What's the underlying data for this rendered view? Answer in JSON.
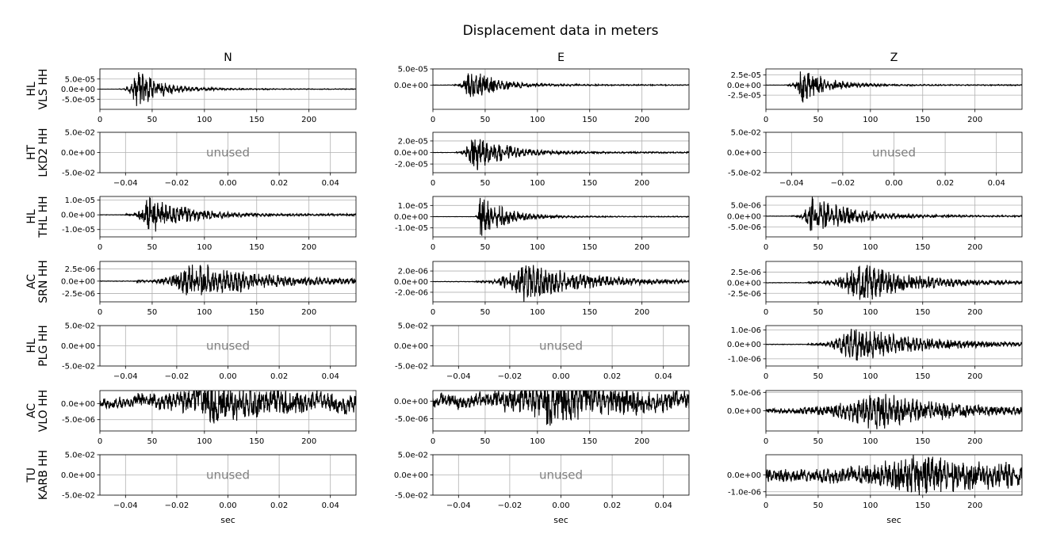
{
  "chart_data": {
    "type": "line",
    "title": "Displacement data in meters",
    "columns": [
      "N",
      "E",
      "Z"
    ],
    "rows": [
      {
        "label_line1": "HL",
        "label_line2": "VLS HH"
      },
      {
        "label_line1": "HT",
        "label_line2": "LKD2 HH"
      },
      {
        "label_line1": "HL",
        "label_line2": "THL HH"
      },
      {
        "label_line1": "AC",
        "label_line2": "SRN HH"
      },
      {
        "label_line1": "HL",
        "label_line2": "PLG HH"
      },
      {
        "label_line1": "AC",
        "label_line2": "VLO HH"
      },
      {
        "label_line1": "TU",
        "label_line2": "KARB HH"
      }
    ],
    "xlabel": "sec",
    "unused_text": "unused",
    "unused_xticks": [
      {
        "value": -0.04,
        "label": "−0.04"
      },
      {
        "value": -0.02,
        "label": "−0.02"
      },
      {
        "value": 0.0,
        "label": "0.00"
      },
      {
        "value": 0.02,
        "label": "0.02"
      },
      {
        "value": 0.04,
        "label": "0.04"
      }
    ],
    "unused_xlim": [
      -0.05,
      0.05
    ],
    "unused_ylim": [
      -0.05,
      0.05
    ],
    "unused_yticks": [
      {
        "value": 0.05,
        "label": "5.0e-02"
      },
      {
        "value": 0.0,
        "label": "0.0e+00"
      },
      {
        "value": -0.05,
        "label": "-5.0e-02"
      }
    ],
    "time_xlim": [
      0,
      245
    ],
    "time_xticks": [
      {
        "value": 0,
        "label": "0"
      },
      {
        "value": 50,
        "label": "50"
      },
      {
        "value": 100,
        "label": "100"
      },
      {
        "value": 150,
        "label": "150"
      },
      {
        "value": 200,
        "label": "200"
      }
    ],
    "panels": [
      {
        "row": 0,
        "col": 0,
        "used": true,
        "ylim": [
          -0.0001,
          0.0001
        ],
        "yticks": [
          {
            "value": 5e-05,
            "label": "5.0e-05"
          },
          {
            "value": 0,
            "label": "0.0e+00"
          },
          {
            "value": -5e-05,
            "label": "-5.0e-05"
          }
        ],
        "onset": 18,
        "peak_time": 35,
        "peak_amp": 8.8e-05,
        "coda": 25,
        "noise": 0.02,
        "wobble": 0,
        "seed": 1
      },
      {
        "row": 0,
        "col": 1,
        "used": true,
        "ylim": [
          -7.5e-05,
          5e-05
        ],
        "yticks": [
          {
            "value": 5e-05,
            "label": "5.0e-05"
          },
          {
            "value": 0,
            "label": "0.0e+00"
          }
        ],
        "onset": 18,
        "peak_time": 35,
        "peak_amp": 5e-05,
        "coda": 25,
        "noise": 0.03,
        "wobble": 0,
        "seed": 2
      },
      {
        "row": 0,
        "col": 2,
        "used": true,
        "ylim": [
          -6e-05,
          4e-05
        ],
        "yticks": [
          {
            "value": 2.5e-05,
            "label": "2.5e-05"
          },
          {
            "value": 0,
            "label": "0.0e+00"
          },
          {
            "value": -2.5e-05,
            "label": "-2.5e-05"
          }
        ],
        "onset": 18,
        "peak_time": 34,
        "peak_amp": 4e-05,
        "coda": 25,
        "noise": 0.03,
        "wobble": 0,
        "seed": 3
      },
      {
        "row": 1,
        "col": 0,
        "used": false
      },
      {
        "row": 1,
        "col": 1,
        "used": true,
        "ylim": [
          -3.5e-05,
          3.5e-05
        ],
        "yticks": [
          {
            "value": 2e-05,
            "label": "2.0e-05"
          },
          {
            "value": 0,
            "label": "0.0e+00"
          },
          {
            "value": -2e-05,
            "label": "-2.0e-05"
          }
        ],
        "onset": 20,
        "peak_time": 38,
        "peak_amp": 3.2e-05,
        "coda": 30,
        "noise": 0.03,
        "wobble": 0,
        "seed": 4
      },
      {
        "row": 1,
        "col": 2,
        "used": false
      },
      {
        "row": 2,
        "col": 0,
        "used": true,
        "ylim": [
          -1.5e-05,
          1.25e-05
        ],
        "yticks": [
          {
            "value": 1e-05,
            "label": "1.0e-05"
          },
          {
            "value": 0,
            "label": "0.0e+00"
          },
          {
            "value": -1e-05,
            "label": "-1.0e-05"
          }
        ],
        "onset": 24,
        "peak_time": 47,
        "peak_amp": 1.25e-05,
        "coda": 35,
        "noise": 0.04,
        "wobble": 0,
        "seed": 5
      },
      {
        "row": 2,
        "col": 1,
        "used": true,
        "ylim": [
          -1.8e-05,
          1.8e-05
        ],
        "yticks": [
          {
            "value": 1e-05,
            "label": "1.0e-05"
          },
          {
            "value": 0,
            "label": "0.0e+00"
          },
          {
            "value": -1e-05,
            "label": "-1.0e-05"
          }
        ],
        "onset": 40,
        "peak_time": 45,
        "peak_amp": 1.8e-05,
        "coda": 25,
        "noise": 0.02,
        "wobble": 0,
        "seed": 6
      },
      {
        "row": 2,
        "col": 2,
        "used": true,
        "ylim": [
          -9.5e-06,
          9e-06
        ],
        "yticks": [
          {
            "value": 5e-06,
            "label": "5.0e-06"
          },
          {
            "value": 0,
            "label": "0.0e+00"
          },
          {
            "value": -5e-06,
            "label": "-5.0e-06"
          }
        ],
        "onset": 24,
        "peak_time": 45,
        "peak_amp": 9e-06,
        "coda": 35,
        "noise": 0.03,
        "wobble": 0,
        "seed": 7
      },
      {
        "row": 3,
        "col": 0,
        "used": true,
        "ylim": [
          -4.2e-06,
          4e-06
        ],
        "yticks": [
          {
            "value": 2.5e-06,
            "label": "2.5e-06"
          },
          {
            "value": 0,
            "label": "0.0e+00"
          },
          {
            "value": -2.5e-06,
            "label": "-2.5e-06"
          }
        ],
        "onset": 35,
        "peak_time": 90,
        "peak_amp": 3.8e-06,
        "coda": 60,
        "noise": 0.06,
        "wobble": 0,
        "seed": 8
      },
      {
        "row": 3,
        "col": 1,
        "used": true,
        "ylim": [
          -3.8e-06,
          3.8e-06
        ],
        "yticks": [
          {
            "value": 2e-06,
            "label": "2.0e-06"
          },
          {
            "value": 0,
            "label": "0.0e+00"
          },
          {
            "value": -2e-06,
            "label": "-2.0e-06"
          }
        ],
        "onset": 40,
        "peak_time": 85,
        "peak_amp": 3.6e-06,
        "coda": 55,
        "noise": 0.05,
        "wobble": 0,
        "seed": 9
      },
      {
        "row": 3,
        "col": 2,
        "used": true,
        "ylim": [
          -4.5e-06,
          5e-06
        ],
        "yticks": [
          {
            "value": 2.5e-06,
            "label": "2.5e-06"
          },
          {
            "value": 0,
            "label": "0.0e+00"
          },
          {
            "value": -2.5e-06,
            "label": "-2.5e-06"
          }
        ],
        "onset": 40,
        "peak_time": 88,
        "peak_amp": 4.5e-06,
        "coda": 50,
        "noise": 0.05,
        "wobble": 0,
        "seed": 10
      },
      {
        "row": 4,
        "col": 0,
        "used": false
      },
      {
        "row": 4,
        "col": 1,
        "used": false
      },
      {
        "row": 4,
        "col": 2,
        "used": true,
        "ylim": [
          -1.5e-06,
          1.3e-06
        ],
        "yticks": [
          {
            "value": 1e-06,
            "label": "1.0e-06"
          },
          {
            "value": 0,
            "label": "0.0e+00"
          },
          {
            "value": -1e-06,
            "label": "-1.0e-06"
          }
        ],
        "onset": 40,
        "peak_time": 82,
        "peak_amp": 1.2e-06,
        "coda": 60,
        "noise": 0.05,
        "wobble": 0,
        "seed": 11
      },
      {
        "row": 5,
        "col": 0,
        "used": true,
        "ylim": [
          -8.5e-06,
          4e-06
        ],
        "yticks": [
          {
            "value": 0,
            "label": "0.0e+00"
          },
          {
            "value": -5e-06,
            "label": "-5.0e-06"
          }
        ],
        "onset": 0,
        "peak_time": 110,
        "peak_amp": 6e-06,
        "coda": 80,
        "noise": 0.25,
        "wobble": 0.25,
        "seed": 12
      },
      {
        "row": 5,
        "col": 1,
        "used": true,
        "ylim": [
          -8.5e-06,
          3e-06
        ],
        "yticks": [
          {
            "value": 0,
            "label": "0.0e+00"
          },
          {
            "value": -5e-06,
            "label": "-5.0e-06"
          }
        ],
        "onset": 0,
        "peak_time": 110,
        "peak_amp": 6.5e-06,
        "coda": 80,
        "noise": 0.25,
        "wobble": 0.25,
        "seed": 13
      },
      {
        "row": 5,
        "col": 2,
        "used": true,
        "ylim": [
          -5.5e-06,
          5.5e-06
        ],
        "yticks": [
          {
            "value": 5e-06,
            "label": "5.0e-06"
          },
          {
            "value": 0,
            "label": "0.0e+00"
          }
        ],
        "onset": 0,
        "peak_time": 105,
        "peak_amp": 5e-06,
        "coda": 60,
        "noise": 0.12,
        "wobble": 0.05,
        "seed": 14
      },
      {
        "row": 6,
        "col": 0,
        "used": false
      },
      {
        "row": 6,
        "col": 1,
        "used": false
      },
      {
        "row": 6,
        "col": 2,
        "used": true,
        "ylim": [
          -1.2e-06,
          1.2e-06
        ],
        "yticks": [
          {
            "value": 0,
            "label": "0.0e+00"
          },
          {
            "value": -1e-06,
            "label": "-1.0e-06"
          }
        ],
        "onset": 0,
        "peak_time": 140,
        "peak_amp": 1.1e-06,
        "coda": 120,
        "noise": 0.3,
        "wobble": 0.1,
        "seed": 15
      }
    ]
  }
}
